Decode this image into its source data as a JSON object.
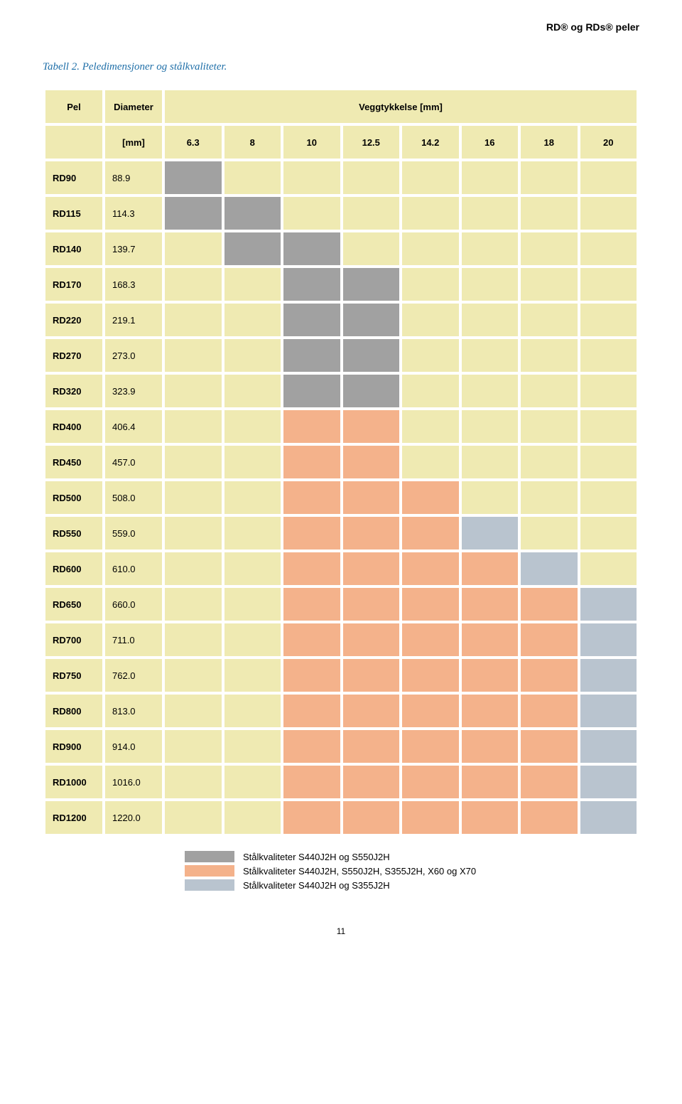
{
  "headerRight": "RD® og RDs® peler",
  "caption": "Tabell 2. Peledimensjoner og stålkvaliteter.",
  "pageNumber": "11",
  "colors": {
    "base": "#efeab2",
    "grey": "#a1a1a1",
    "orange": "#f4b28b",
    "bluegrey": "#b9c4cf",
    "captionColor": "#1f6fa8"
  },
  "columns": {
    "pel": "Pel",
    "diameter": "Diameter",
    "thicknessHeader": "Veggtykkelse [mm]",
    "mmLabel": "[mm]",
    "thickness": [
      "6.3",
      "8",
      "10",
      "12.5",
      "14.2",
      "16",
      "18",
      "20"
    ]
  },
  "rows": [
    {
      "pel": "RD90",
      "diam": "88.9",
      "cells": [
        "grey",
        "",
        "",
        "",
        "",
        "",
        "",
        ""
      ]
    },
    {
      "pel": "RD115",
      "diam": "114.3",
      "cells": [
        "grey",
        "grey",
        "",
        "",
        "",
        "",
        "",
        ""
      ]
    },
    {
      "pel": "RD140",
      "diam": "139.7",
      "cells": [
        "",
        "grey",
        "grey",
        "",
        "",
        "",
        "",
        ""
      ]
    },
    {
      "pel": "RD170",
      "diam": "168.3",
      "cells": [
        "",
        "",
        "grey",
        "grey",
        "",
        "",
        "",
        ""
      ]
    },
    {
      "pel": "RD220",
      "diam": "219.1",
      "cells": [
        "",
        "",
        "grey",
        "grey",
        "",
        "",
        "",
        ""
      ]
    },
    {
      "pel": "RD270",
      "diam": "273.0",
      "cells": [
        "",
        "",
        "grey",
        "grey",
        "",
        "",
        "",
        ""
      ]
    },
    {
      "pel": "RD320",
      "diam": "323.9",
      "cells": [
        "",
        "",
        "grey",
        "grey",
        "",
        "",
        "",
        ""
      ]
    },
    {
      "pel": "RD400",
      "diam": "406.4",
      "cells": [
        "",
        "",
        "orange",
        "orange",
        "",
        "",
        "",
        ""
      ]
    },
    {
      "pel": "RD450",
      "diam": "457.0",
      "cells": [
        "",
        "",
        "orange",
        "orange",
        "",
        "",
        "",
        ""
      ]
    },
    {
      "pel": "RD500",
      "diam": "508.0",
      "cells": [
        "",
        "",
        "orange",
        "orange",
        "orange",
        "",
        "",
        ""
      ]
    },
    {
      "pel": "RD550",
      "diam": "559.0",
      "cells": [
        "",
        "",
        "orange",
        "orange",
        "orange",
        "bluegrey",
        "",
        ""
      ]
    },
    {
      "pel": "RD600",
      "diam": "610.0",
      "cells": [
        "",
        "",
        "orange",
        "orange",
        "orange",
        "orange",
        "bluegrey",
        ""
      ]
    },
    {
      "pel": "RD650",
      "diam": "660.0",
      "cells": [
        "",
        "",
        "orange",
        "orange",
        "orange",
        "orange",
        "orange",
        "bluegrey"
      ]
    },
    {
      "pel": "RD700",
      "diam": "711.0",
      "cells": [
        "",
        "",
        "orange",
        "orange",
        "orange",
        "orange",
        "orange",
        "bluegrey"
      ]
    },
    {
      "pel": "RD750",
      "diam": "762.0",
      "cells": [
        "",
        "",
        "orange",
        "orange",
        "orange",
        "orange",
        "orange",
        "bluegrey"
      ]
    },
    {
      "pel": "RD800",
      "diam": "813.0",
      "cells": [
        "",
        "",
        "orange",
        "orange",
        "orange",
        "orange",
        "orange",
        "bluegrey"
      ]
    },
    {
      "pel": "RD900",
      "diam": "914.0",
      "cells": [
        "",
        "",
        "orange",
        "orange",
        "orange",
        "orange",
        "orange",
        "bluegrey"
      ]
    },
    {
      "pel": "RD1000",
      "diam": "1016.0",
      "cells": [
        "",
        "",
        "orange",
        "orange",
        "orange",
        "orange",
        "orange",
        "bluegrey"
      ]
    },
    {
      "pel": "RD1200",
      "diam": "1220.0",
      "cells": [
        "",
        "",
        "orange",
        "orange",
        "orange",
        "orange",
        "orange",
        "bluegrey"
      ]
    }
  ],
  "legend": [
    {
      "color": "grey",
      "label": "Stålkvaliteter S440J2H og S550J2H"
    },
    {
      "color": "orange",
      "label": "Stålkvaliteter S440J2H, S550J2H, S355J2H, X60 og X70"
    },
    {
      "color": "bluegrey",
      "label": "Stålkvaliteter S440J2H og S355J2H"
    }
  ]
}
